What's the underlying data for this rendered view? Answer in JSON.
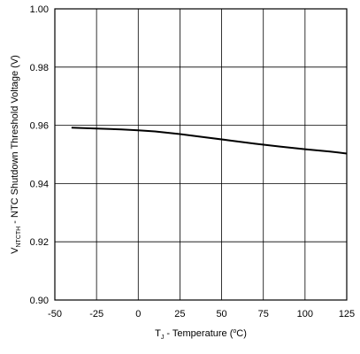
{
  "chart_data": {
    "type": "line",
    "xlabel": {
      "main": "T",
      "sub": "J",
      "rest": " - Temperature (",
      "sup": "o",
      "end": "C)"
    },
    "ylabel": {
      "main": "V",
      "sub": "NTCTH",
      "rest": " - NTC Shutdown Threshold Voltage (V)"
    },
    "xlim": [
      -50,
      125
    ],
    "ylim": [
      0.9,
      1.0
    ],
    "x_ticks": [
      -50,
      -25,
      0,
      25,
      50,
      75,
      100,
      125
    ],
    "x_tick_labels": [
      "-50",
      "-25",
      "0",
      "25",
      "50",
      "75",
      "100",
      "125"
    ],
    "y_ticks": [
      0.9,
      0.92,
      0.94,
      0.96,
      0.98,
      1.0
    ],
    "y_tick_labels": [
      "0.90",
      "0.92",
      "0.94",
      "0.96",
      "0.98",
      "1.00"
    ],
    "grid": true,
    "series": [
      {
        "color": "#000000",
        "x": [
          -40,
          -25,
          -10,
          0,
          10,
          25,
          40,
          55,
          70,
          85,
          100,
          115,
          125
        ],
        "y": [
          0.9592,
          0.9589,
          0.9586,
          0.9583,
          0.9579,
          0.957,
          0.9559,
          0.9548,
          0.9537,
          0.9527,
          0.9518,
          0.951,
          0.9503
        ]
      }
    ]
  }
}
